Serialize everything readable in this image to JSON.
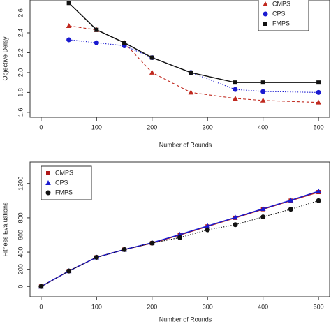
{
  "chart_data": [
    {
      "type": "line",
      "xlabel": "Number of Rounds",
      "ylabel": "Objective Delay",
      "x": [
        50,
        100,
        150,
        200,
        270,
        350,
        400,
        500
      ],
      "xlim": [
        -20,
        520
      ],
      "xticks": [
        0,
        100,
        200,
        300,
        400,
        500
      ],
      "ylim": [
        1.55,
        2.73
      ],
      "yticks": [
        1.6,
        1.8,
        {
          "value": 2,
          "label": "2.0"
        },
        2.2,
        2.4,
        2.6
      ],
      "legend": "top-right",
      "series": [
        {
          "name": "CMPS",
          "color": "#c0281e",
          "marker": "triangle",
          "dash": "dashed",
          "values": [
            2.47,
            2.43,
            2.3,
            2.0,
            1.8,
            1.74,
            1.72,
            1.7
          ]
        },
        {
          "name": "CPS",
          "color": "#1a1ad0",
          "marker": "circle",
          "dash": "dotted",
          "values": [
            2.33,
            2.3,
            2.27,
            2.15,
            2.0,
            1.83,
            1.81,
            1.8
          ]
        },
        {
          "name": "FMPS",
          "color": "#111111",
          "marker": "square",
          "dash": "solid",
          "values": [
            2.7,
            2.43,
            2.3,
            2.15,
            2.0,
            1.9,
            1.9,
            1.9
          ]
        }
      ]
    },
    {
      "type": "line",
      "xlabel": "Number of Rounds",
      "ylabel": "Fitness  Evaluations",
      "x": [
        0,
        50,
        100,
        150,
        200,
        250,
        300,
        350,
        400,
        450,
        500
      ],
      "xlim": [
        -20,
        520
      ],
      "xticks": [
        0,
        100,
        200,
        300,
        400,
        500
      ],
      "ylim": [
        -120,
        1450
      ],
      "yticks": [
        0,
        200,
        400,
        600,
        800,
        1200
      ],
      "legend": "top-left",
      "series": [
        {
          "name": "CMPS",
          "color": "#b01818",
          "marker": "square",
          "dash": "solid",
          "values": [
            0,
            180,
            340,
            430,
            505,
            600,
            700,
            800,
            900,
            1000,
            1100
          ]
        },
        {
          "name": "CPS",
          "color": "#1a1ad0",
          "marker": "triangle",
          "dash": "solid",
          "values": [
            0,
            180,
            340,
            430,
            510,
            605,
            705,
            805,
            905,
            1005,
            1110
          ]
        },
        {
          "name": "FMPS",
          "color": "#111111",
          "marker": "circle",
          "dash": "dotted",
          "values": [
            0,
            180,
            340,
            430,
            505,
            570,
            660,
            720,
            810,
            900,
            1000
          ]
        }
      ]
    }
  ]
}
